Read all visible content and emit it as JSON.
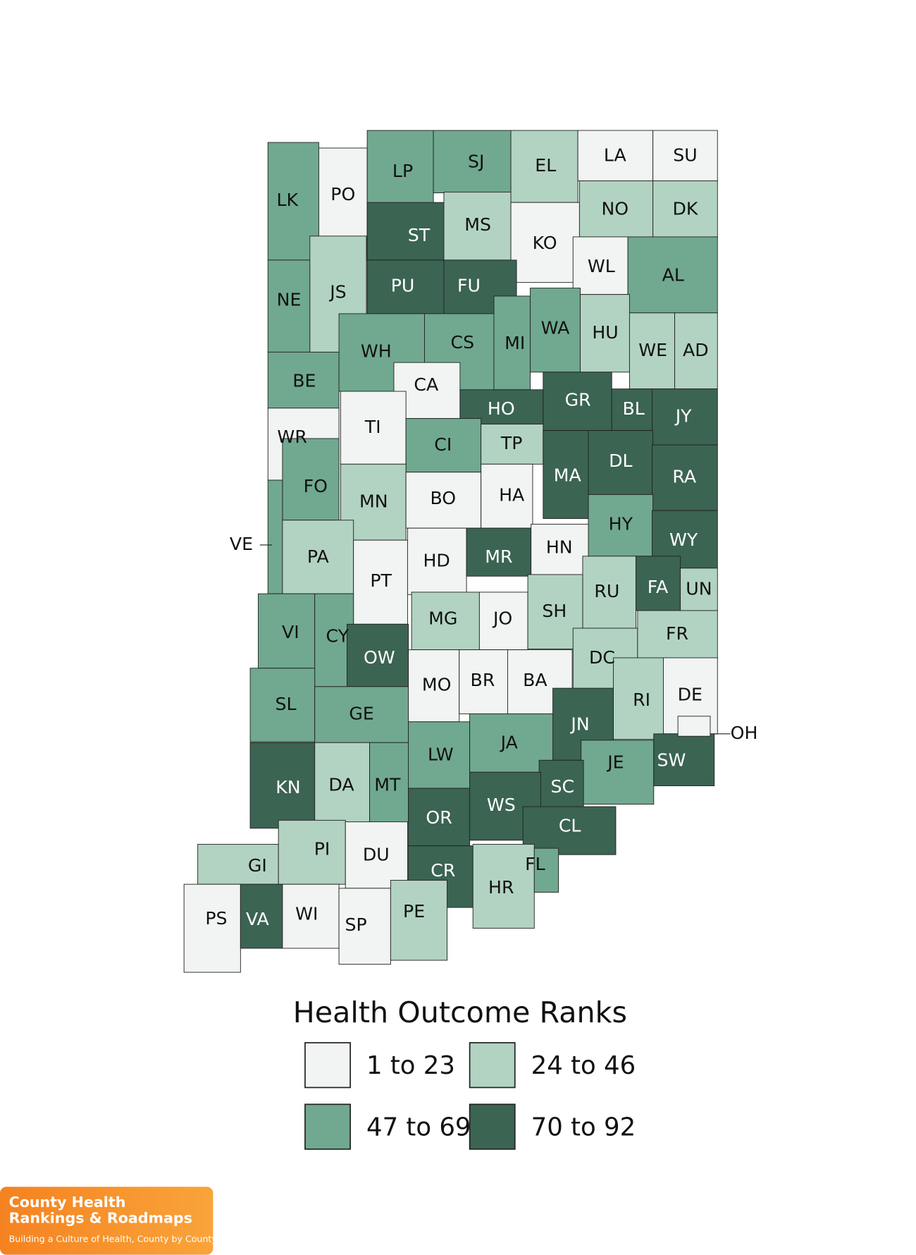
{
  "title": "Health Outcome Ranks",
  "legend": [
    {
      "label": "1 to 23",
      "color": "#f1f4f2"
    },
    {
      "label": "24 to 46",
      "color": "#b2d3c2"
    },
    {
      "label": "47 to 69",
      "color": "#70a990"
    },
    {
      "label": "70 to 92",
      "color": "#3b6453"
    }
  ],
  "counties": [
    {
      "abbr": "LK",
      "bin": 2
    },
    {
      "abbr": "PO",
      "bin": 0
    },
    {
      "abbr": "LP",
      "bin": 2
    },
    {
      "abbr": "SJ",
      "bin": 2
    },
    {
      "abbr": "EL",
      "bin": 1
    },
    {
      "abbr": "LA",
      "bin": 0
    },
    {
      "abbr": "SU",
      "bin": 0
    },
    {
      "abbr": "ST",
      "bin": 3
    },
    {
      "abbr": "MS",
      "bin": 1
    },
    {
      "abbr": "KO",
      "bin": 0
    },
    {
      "abbr": "NO",
      "bin": 1
    },
    {
      "abbr": "DK",
      "bin": 1
    },
    {
      "abbr": "WL",
      "bin": 0
    },
    {
      "abbr": "AL",
      "bin": 2
    },
    {
      "abbr": "NE",
      "bin": 2
    },
    {
      "abbr": "JS",
      "bin": 1
    },
    {
      "abbr": "PU",
      "bin": 3
    },
    {
      "abbr": "FU",
      "bin": 3
    },
    {
      "abbr": "WH",
      "bin": 2
    },
    {
      "abbr": "CS",
      "bin": 2
    },
    {
      "abbr": "MI",
      "bin": 2
    },
    {
      "abbr": "WA",
      "bin": 2
    },
    {
      "abbr": "HU",
      "bin": 1
    },
    {
      "abbr": "WE",
      "bin": 1
    },
    {
      "abbr": "AD",
      "bin": 1
    },
    {
      "abbr": "BE",
      "bin": 2
    },
    {
      "abbr": "CA",
      "bin": 0
    },
    {
      "abbr": "HO",
      "bin": 3
    },
    {
      "abbr": "GR",
      "bin": 3
    },
    {
      "abbr": "BL",
      "bin": 3
    },
    {
      "abbr": "JY",
      "bin": 3
    },
    {
      "abbr": "WR",
      "bin": 0
    },
    {
      "abbr": "TI",
      "bin": 0
    },
    {
      "abbr": "CI",
      "bin": 2
    },
    {
      "abbr": "TP",
      "bin": 1
    },
    {
      "abbr": "MA",
      "bin": 3
    },
    {
      "abbr": "DL",
      "bin": 3
    },
    {
      "abbr": "RA",
      "bin": 3
    },
    {
      "abbr": "FO",
      "bin": 2
    },
    {
      "abbr": "VE",
      "bin": 2
    },
    {
      "abbr": "MN",
      "bin": 1
    },
    {
      "abbr": "BO",
      "bin": 0
    },
    {
      "abbr": "HA",
      "bin": 0
    },
    {
      "abbr": "HY",
      "bin": 2
    },
    {
      "abbr": "WY",
      "bin": 3
    },
    {
      "abbr": "PA",
      "bin": 1
    },
    {
      "abbr": "PT",
      "bin": 0
    },
    {
      "abbr": "HD",
      "bin": 0
    },
    {
      "abbr": "MR",
      "bin": 3
    },
    {
      "abbr": "HN",
      "bin": 0
    },
    {
      "abbr": "RU",
      "bin": 1
    },
    {
      "abbr": "FA",
      "bin": 3
    },
    {
      "abbr": "UN",
      "bin": 1
    },
    {
      "abbr": "VI",
      "bin": 2
    },
    {
      "abbr": "CY",
      "bin": 2
    },
    {
      "abbr": "MG",
      "bin": 1
    },
    {
      "abbr": "JO",
      "bin": 0
    },
    {
      "abbr": "SH",
      "bin": 1
    },
    {
      "abbr": "OW",
      "bin": 3
    },
    {
      "abbr": "DC",
      "bin": 1
    },
    {
      "abbr": "FR",
      "bin": 1
    },
    {
      "abbr": "MO",
      "bin": 0
    },
    {
      "abbr": "BR",
      "bin": 0
    },
    {
      "abbr": "BA",
      "bin": 0
    },
    {
      "abbr": "SL",
      "bin": 2
    },
    {
      "abbr": "GE",
      "bin": 2
    },
    {
      "abbr": "RI",
      "bin": 1
    },
    {
      "abbr": "DE",
      "bin": 0
    },
    {
      "abbr": "JN",
      "bin": 3
    },
    {
      "abbr": "LW",
      "bin": 2
    },
    {
      "abbr": "JA",
      "bin": 2
    },
    {
      "abbr": "KN",
      "bin": 3
    },
    {
      "abbr": "DA",
      "bin": 1
    },
    {
      "abbr": "MT",
      "bin": 2
    },
    {
      "abbr": "JE",
      "bin": 2
    },
    {
      "abbr": "SW",
      "bin": 3
    },
    {
      "abbr": "SC",
      "bin": 3
    },
    {
      "abbr": "OR",
      "bin": 3
    },
    {
      "abbr": "WS",
      "bin": 3
    },
    {
      "abbr": "CL",
      "bin": 3
    },
    {
      "abbr": "GI",
      "bin": 1
    },
    {
      "abbr": "PI",
      "bin": 1
    },
    {
      "abbr": "DU",
      "bin": 0
    },
    {
      "abbr": "CR",
      "bin": 3
    },
    {
      "abbr": "HR",
      "bin": 1
    },
    {
      "abbr": "FL",
      "bin": 2
    },
    {
      "abbr": "PS",
      "bin": 0
    },
    {
      "abbr": "VA",
      "bin": 3
    },
    {
      "abbr": "WI",
      "bin": 0
    },
    {
      "abbr": "SP",
      "bin": 0
    },
    {
      "abbr": "PE",
      "bin": 1
    },
    {
      "abbr": "OH",
      "bin": 0
    }
  ],
  "logo": {
    "line1": "County Health",
    "line2": "Rankings & Roadmaps",
    "tagline": "Building a Culture of Health, County by County"
  }
}
